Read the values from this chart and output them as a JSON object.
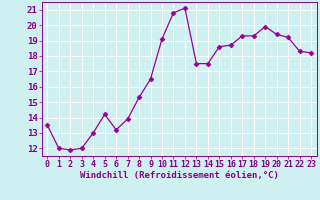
{
  "x": [
    0,
    1,
    2,
    3,
    4,
    5,
    6,
    7,
    8,
    9,
    10,
    11,
    12,
    13,
    14,
    15,
    16,
    17,
    18,
    19,
    20,
    21,
    22,
    23
  ],
  "y": [
    13.5,
    12.0,
    11.9,
    12.0,
    13.0,
    14.2,
    13.2,
    13.9,
    15.3,
    16.5,
    19.1,
    20.8,
    21.1,
    17.5,
    17.5,
    18.6,
    18.7,
    19.3,
    19.3,
    19.9,
    19.4,
    19.2,
    18.3,
    18.2
  ],
  "line_color": "#990099",
  "marker": "D",
  "marker_size": 2.5,
  "background_color": "#cff0f0",
  "grid_color": "#ffffff",
  "xlabel": "Windchill (Refroidissement éolien,°C)",
  "ylim": [
    11.5,
    21.5
  ],
  "xlim": [
    -0.5,
    23.5
  ],
  "yticks": [
    12,
    13,
    14,
    15,
    16,
    17,
    18,
    19,
    20,
    21
  ],
  "xticks": [
    0,
    1,
    2,
    3,
    4,
    5,
    6,
    7,
    8,
    9,
    10,
    11,
    12,
    13,
    14,
    15,
    16,
    17,
    18,
    19,
    20,
    21,
    22,
    23
  ],
  "tick_color": "#880088",
  "label_fontsize": 6.5,
  "tick_fontsize": 6.0,
  "ytick_fontsize": 6.5
}
